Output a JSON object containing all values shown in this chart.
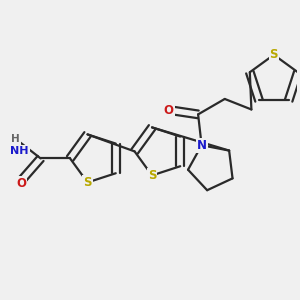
{
  "bg_color": "#f0f0f0",
  "bond_color": "#2a2a2a",
  "bond_width": 1.6,
  "dbo": 0.055,
  "S_color": "#b8a800",
  "N_color": "#1a1acc",
  "O_color": "#cc1a1a",
  "H_color": "#666666",
  "fs": 8.5,
  "xlim": [
    0.0,
    4.2
  ],
  "ylim": [
    0.2,
    3.6
  ]
}
